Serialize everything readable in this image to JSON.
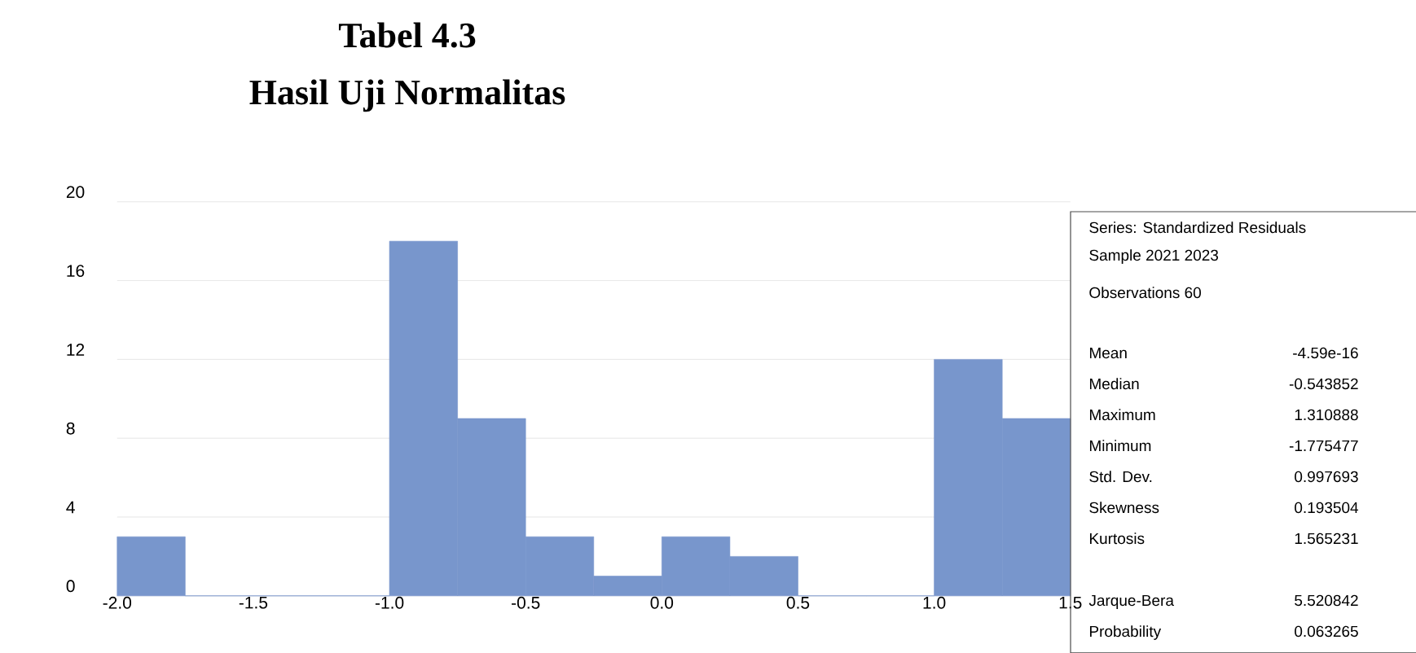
{
  "chart_data": {
    "type": "histogram",
    "title": "Tabel 4.3",
    "subtitle": "Hasil Uji Normalitas",
    "bins": [
      -2.0,
      -1.75,
      -1.5,
      -1.25,
      -1.0,
      -0.75,
      -0.5,
      -0.25,
      0.0,
      0.25,
      0.5,
      0.75,
      1.0,
      1.25,
      1.5
    ],
    "values": [
      3,
      0,
      0,
      0,
      18,
      9,
      3,
      1,
      3,
      2,
      0,
      0,
      12,
      9
    ],
    "color": "#7896cc",
    "xlim": [
      -2.0,
      1.5
    ],
    "ylim": [
      0,
      20
    ],
    "xticks": [
      {
        "value": -2.0,
        "label": "-2.0"
      },
      -1.5,
      {
        "value": -1.0,
        "label": "-1.0"
      },
      -0.5,
      {
        "value": 0.0,
        "label": "0.0"
      },
      0.5,
      {
        "value": 1.0,
        "label": "1.0"
      },
      1.5
    ],
    "yticks": [
      0,
      4,
      8,
      12,
      16,
      20
    ],
    "grid": "y",
    "annotations": [
      "Series: Standardized Residuals",
      "Sample 2021 2023",
      "Observations 60",
      "Mean",
      "-4.59e-16",
      "Median",
      "-0.543852",
      "Maximum",
      "1.310888",
      "Minimum",
      "-1.775477",
      "Std. Dev.",
      "0.997693",
      "Skewness",
      "0.193504",
      "Kurtosis",
      "1.565231",
      "Jarque-Bera",
      "5.520842",
      "Probability",
      "0.063265"
    ]
  }
}
